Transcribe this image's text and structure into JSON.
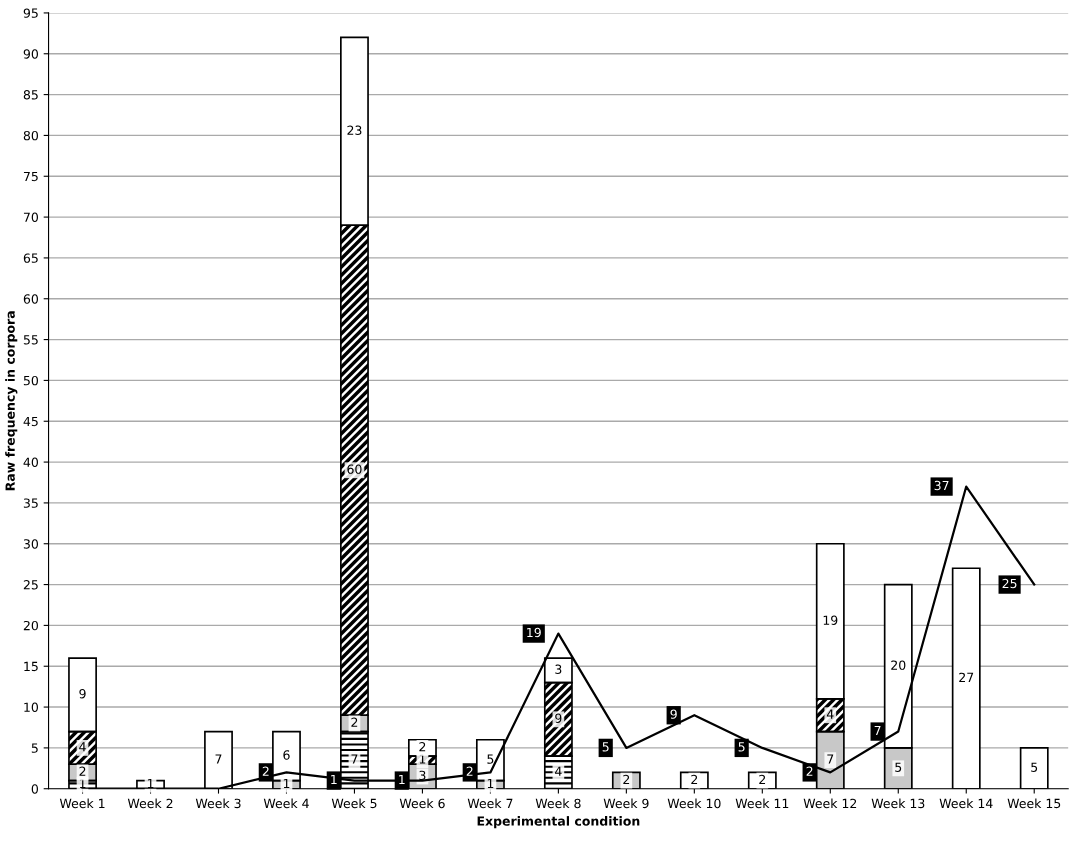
{
  "chart_data": {
    "type": "bar",
    "stacked": true,
    "xlabel": "Experimental condition",
    "ylabel": "Raw frequency in corpora",
    "categories": [
      "Week 1",
      "Week 2",
      "Week 3",
      "Week 4",
      "Week 5",
      "Week 6",
      "Week 7",
      "Week 8",
      "Week 9",
      "Week 10",
      "Week 11",
      "Week 12",
      "Week 13",
      "Week 14",
      "Week 15"
    ],
    "series": [
      {
        "color": "#000000",
        "values": [
          1,
          null,
          null,
          null,
          7,
          null,
          null,
          4,
          null,
          null,
          null,
          null,
          null,
          null,
          null
        ],
        "value_labels": [
          "1",
          null,
          null,
          null,
          "7",
          null,
          null,
          "4",
          null,
          null,
          null,
          null,
          null,
          null,
          null
        ]
      },
      {
        "color": "#c8c8c8",
        "values": [
          2,
          null,
          null,
          1,
          2,
          3,
          1,
          null,
          2,
          null,
          null,
          7,
          5,
          null,
          null
        ],
        "value_labels": [
          "2",
          null,
          null,
          "1",
          "2",
          "3",
          "1",
          null,
          "2",
          null,
          null,
          "7",
          "5",
          null,
          null
        ]
      },
      {
        "color": "#ffffff",
        "values": [
          4,
          null,
          null,
          null,
          60,
          1,
          null,
          9,
          null,
          null,
          null,
          4,
          null,
          null,
          null
        ],
        "value_labels": [
          "4",
          null,
          null,
          null,
          "60",
          "1",
          null,
          "9",
          null,
          null,
          null,
          "4",
          null,
          null,
          null
        ]
      },
      {
        "color": "#ffffff",
        "values": [
          9,
          1,
          7,
          6,
          23,
          2,
          5,
          3,
          null,
          2,
          2,
          19,
          20,
          27,
          5
        ],
        "value_labels": [
          "9",
          "1",
          "7",
          "6",
          "23",
          "2",
          "5",
          "3",
          null,
          "2",
          "2",
          "19",
          "20",
          "27",
          "5"
        ]
      },
      {
        "type": "line",
        "color": "#000000",
        "values": [
          0,
          0,
          0,
          2,
          1,
          1,
          2,
          19,
          5,
          9,
          5,
          2,
          7,
          37,
          25
        ],
        "value_labels": [
          null,
          null,
          null,
          "2",
          "1",
          "1",
          "2",
          "19",
          "5",
          "9",
          "5",
          "2",
          "7",
          "37",
          "25"
        ]
      }
    ],
    "ylim": [
      0,
      95
    ],
    "yticks": [
      0,
      5,
      10,
      15,
      20,
      25,
      30,
      35,
      40,
      45,
      50,
      55,
      60,
      65,
      70,
      75,
      80,
      85,
      90,
      95
    ],
    "grid": "y",
    "marker": "none"
  }
}
